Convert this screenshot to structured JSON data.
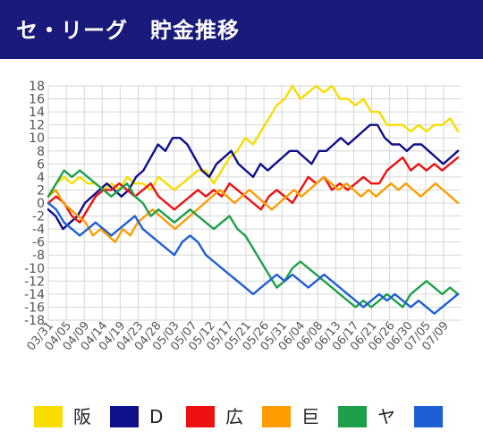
{
  "header": {
    "title": "セ・リーグ　貯金推移"
  },
  "chart_data": {
    "type": "line",
    "title": "セ・リーグ　貯金推移",
    "ylim": [
      -18,
      18
    ],
    "yticks": [
      18,
      16,
      14,
      12,
      10,
      8,
      6,
      4,
      2,
      0,
      -2,
      -4,
      -6,
      -8,
      -10,
      -12,
      -14,
      -16,
      -18
    ],
    "grid": true,
    "legend_position": "bottom",
    "x_tick_labels": [
      "03/31",
      "04/05",
      "04/09",
      "04/14",
      "04/19",
      "04/23",
      "04/28",
      "05/03",
      "05/07",
      "05/12",
      "05/17",
      "05/21",
      "05/26",
      "05/31",
      "06/04",
      "06/08",
      "06/13",
      "06/17",
      "06/21",
      "06/26",
      "06/30",
      "07/05",
      "07/09"
    ],
    "series": [
      {
        "name": "阪",
        "color": "#f7dd00",
        "values": [
          1,
          3,
          4,
          3,
          4,
          3,
          3,
          2,
          3,
          2,
          4,
          3,
          3,
          2,
          4,
          3,
          2,
          3,
          4,
          5,
          5,
          3,
          5,
          7,
          8,
          10,
          9,
          11,
          13,
          15,
          16,
          18,
          16,
          17,
          18,
          17,
          18,
          16,
          16,
          15,
          16,
          14,
          14,
          12,
          12,
          12,
          11,
          12,
          11,
          12,
          12,
          13,
          11
        ]
      },
      {
        "name": "D",
        "color": "#10108a",
        "values": [
          -1,
          -2,
          -4,
          -3,
          -2,
          0,
          1,
          2,
          3,
          2,
          1,
          2,
          4,
          5,
          7,
          9,
          8,
          10,
          10,
          9,
          7,
          5,
          4,
          6,
          7,
          8,
          6,
          5,
          4,
          6,
          5,
          6,
          7,
          8,
          8,
          7,
          6,
          8,
          8,
          9,
          10,
          9,
          10,
          11,
          12,
          12,
          10,
          9,
          9,
          8,
          9,
          9,
          8,
          7,
          6,
          7,
          8
        ]
      },
      {
        "name": "広",
        "color": "#ee1111",
        "values": [
          0,
          1,
          0,
          -2,
          -3,
          -1,
          1,
          2,
          2,
          3,
          2,
          1,
          2,
          3,
          1,
          0,
          -1,
          0,
          1,
          2,
          1,
          2,
          1,
          3,
          2,
          1,
          0,
          -1,
          1,
          2,
          1,
          0,
          2,
          4,
          3,
          4,
          2,
          3,
          2,
          3,
          4,
          3,
          3,
          5,
          6,
          7,
          5,
          6,
          5,
          6,
          5,
          6,
          7
        ]
      },
      {
        "name": "巨",
        "color": "#ff9d00",
        "values": [
          1,
          2,
          0,
          -1,
          -2,
          -3,
          -5,
          -4,
          -5,
          -6,
          -4,
          -5,
          -3,
          -2,
          -1,
          -2,
          -3,
          -4,
          -3,
          -2,
          -1,
          0,
          1,
          2,
          1,
          0,
          1,
          2,
          1,
          0,
          -1,
          0,
          1,
          2,
          1,
          2,
          3,
          4,
          3,
          2,
          3,
          2,
          1,
          2,
          1,
          2,
          3,
          2,
          3,
          2,
          1,
          2,
          3,
          2,
          1,
          0
        ]
      },
      {
        "name": "ヤ",
        "color": "#1ea04b",
        "values": [
          1,
          3,
          5,
          4,
          5,
          4,
          3,
          2,
          1,
          2,
          3,
          1,
          0,
          -2,
          -1,
          -2,
          -3,
          -2,
          -1,
          -2,
          -3,
          -4,
          -3,
          -2,
          -4,
          -5,
          -7,
          -9,
          -11,
          -13,
          -12,
          -10,
          -9,
          -10,
          -11,
          -12,
          -13,
          -14,
          -15,
          -16,
          -15,
          -16,
          -15,
          -14,
          -15,
          -16,
          -14,
          -13,
          -12,
          -13,
          -14,
          -13,
          -14
        ]
      },
      {
        "name": "",
        "color": "#1f5fd6",
        "values": [
          0,
          -1,
          -3,
          -4,
          -5,
          -4,
          -3,
          -4,
          -5,
          -4,
          -3,
          -2,
          -4,
          -5,
          -6,
          -7,
          -8,
          -6,
          -5,
          -6,
          -8,
          -9,
          -10,
          -11,
          -12,
          -13,
          -14,
          -13,
          -12,
          -11,
          -12,
          -11,
          -12,
          -13,
          -12,
          -11,
          -12,
          -13,
          -14,
          -15,
          -16,
          -15,
          -14,
          -15,
          -14,
          -15,
          -16,
          -15,
          -16,
          -17,
          -16,
          -15,
          -14
        ]
      }
    ]
  }
}
